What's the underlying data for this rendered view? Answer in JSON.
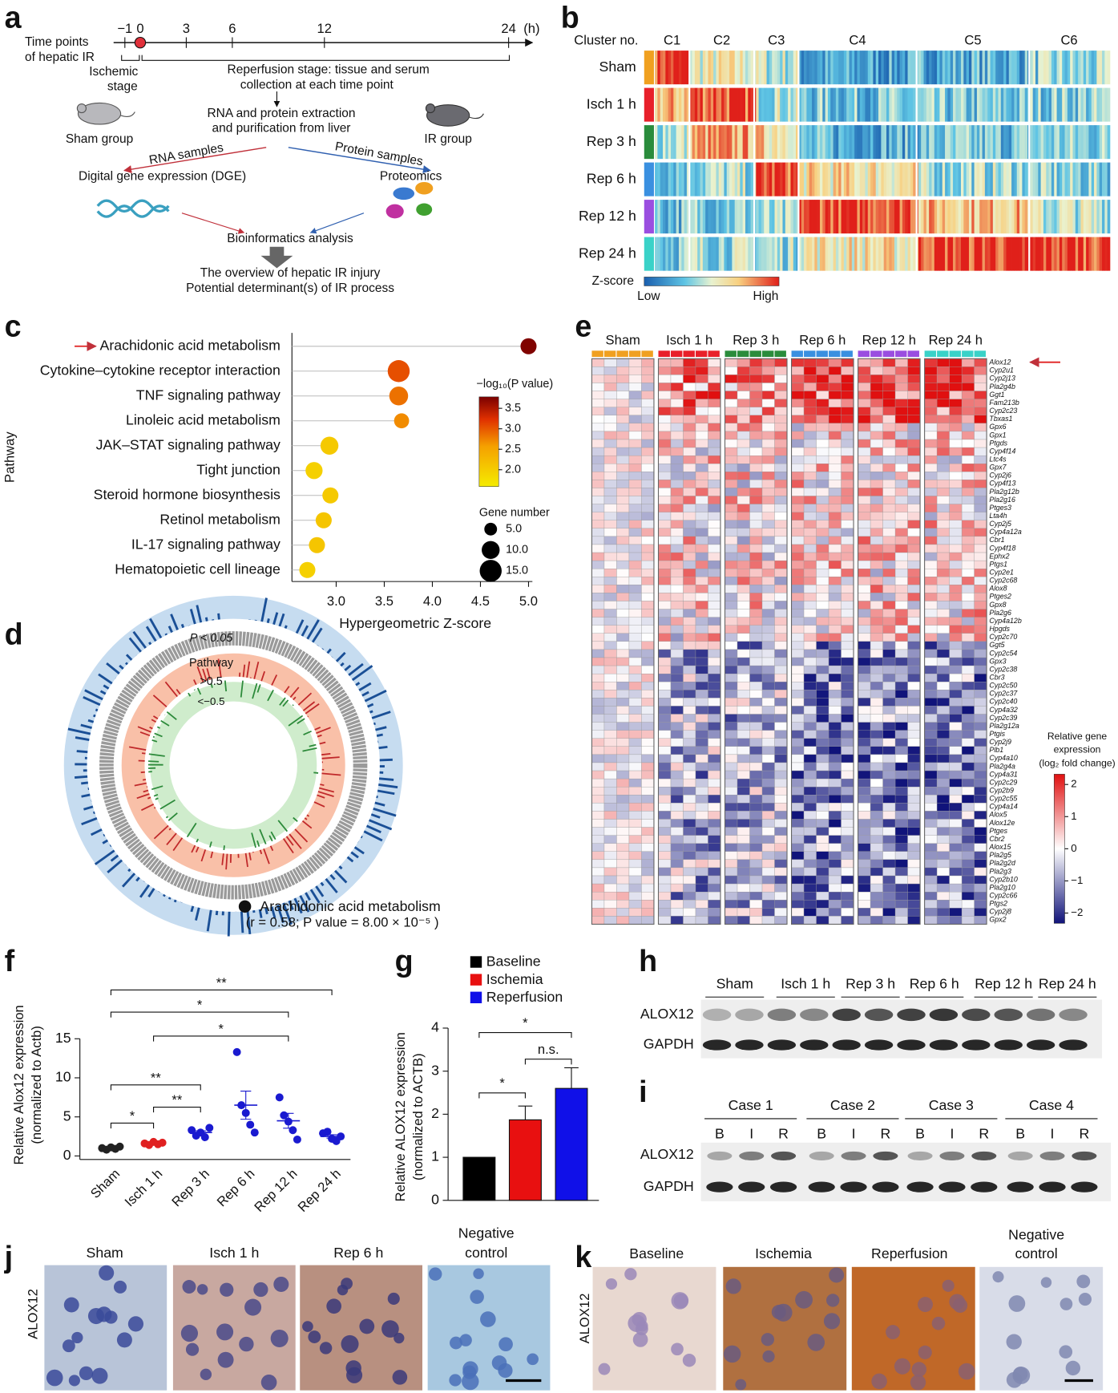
{
  "panel_letters": [
    "a",
    "b",
    "c",
    "d",
    "e",
    "f",
    "g",
    "h",
    "i",
    "j",
    "k"
  ],
  "panel_a": {
    "timeline_label": [
      "Time points",
      "of hepatic IR"
    ],
    "time_axis": {
      "ticks": [
        {
          "value": -1,
          "label": "−1"
        },
        0,
        3,
        6,
        12,
        24
      ],
      "unit": "(h)"
    },
    "ischemic_stage": [
      "Ischemic",
      "stage"
    ],
    "reperfusion_stage": [
      "Reperfusion stage: tissue and serum",
      "collection at each time point"
    ],
    "extraction": [
      "RNA and protein extraction",
      "and purification from liver"
    ],
    "sham_group": "Sham group",
    "ir_group": "IR group",
    "rna_samples": "RNA samples",
    "protein_samples": "Protein samples",
    "dge": "Digital gene expression (DGE)",
    "proteomics": "Proteomics",
    "bioinformatics": "Bioinformatics analysis",
    "outcome": [
      "The overview of hepatic IR injury",
      "Potential determinant(s) of IR process"
    ]
  },
  "panel_b": {
    "cluster_title": "Cluster no.",
    "clusters": [
      "C1",
      "C2",
      "C3",
      "C4",
      "C5",
      "C6"
    ],
    "groups": [
      {
        "name": "Sham",
        "color": "#f0a020"
      },
      {
        "name": "Isch 1 h",
        "color": "#e8202a"
      },
      {
        "name": "Rep 3 h",
        "color": "#2a8c3c"
      },
      {
        "name": "Rep 6 h",
        "color": "#3a90e0"
      },
      {
        "name": "Rep 12 h",
        "color": "#9a4ee0"
      },
      {
        "name": "Rep 24 h",
        "color": "#3ad2c8"
      }
    ],
    "zscore": {
      "title": "Z-score",
      "low": "Low",
      "high": "High"
    }
  },
  "panel_d": {
    "p_label": "P < 0.05",
    "pathway": "Pathway",
    "pos": ">0.5",
    "neg": "<−0.5",
    "marker": "a",
    "pathway_name": "Arachidonic acid metabolism",
    "stats": "(r = 0.58; P value = 8.00 × 10⁻⁵ )"
  },
  "panel_e": {
    "genes": [
      "Alox12",
      "Cyp2u1",
      "Cyp2j13",
      "Pla2g4b",
      "Ggt1",
      "Fam213b",
      "Cyp2c23",
      "Tbxas1",
      "Gpx6",
      "Gpx1",
      "Ptgds",
      "Cyp4f14",
      "Ltc4s",
      "Gpx7",
      "Cyp2j6",
      "Cyp4f13",
      "Pla2g12b",
      "Pla2g16",
      "Ptges3",
      "Lta4h",
      "Cyp2j5",
      "Cyp4a12a",
      "Cbr1",
      "Cyp4f18",
      "Ephx2",
      "Ptgs1",
      "Cyp2e1",
      "Cyp2c68",
      "Alox8",
      "Ptges2",
      "Gpx8",
      "Pla2g6",
      "Cyp4a12b",
      "Hpgds",
      "Cyp2c70",
      "Ggt5",
      "Cyp2c54",
      "Gpx3",
      "Cyp2c38",
      "Cbr3",
      "Cyp2c50",
      "Cyp2c37",
      "Cyp2c40",
      "Cyp4a32",
      "Cyp2c39",
      "Pla2g12a",
      "Ptgis",
      "Cyp2j9",
      "Plb1",
      "Cyp4a10",
      "Pla2g4a",
      "Cyp4a31",
      "Cyp2c29",
      "Cyp2b9",
      "Cyp2c55",
      "Cyp4a14",
      "Alox5",
      "Alox12e",
      "Ptges",
      "Cbr2",
      "Alox15",
      "Pla2g5",
      "Pla2g2d",
      "Pla2g3",
      "Cyp2b10",
      "Pla2g10",
      "Cyp2c66",
      "Ptgs2",
      "Cyp2j8",
      "Gpx2"
    ],
    "colorbar": {
      "title": [
        "Relative gene",
        "expression",
        "(log₂ fold change)"
      ],
      "lim": [
        -2.32,
        2.32
      ],
      "ticks": [
        2,
        1,
        0,
        {
          "value": -1,
          "label": "−1"
        },
        {
          "value": -2,
          "label": "−2"
        }
      ]
    }
  },
  "panel_h": {
    "proteins": [
      "ALOX12",
      "GAPDH"
    ]
  },
  "panel_i": {
    "cases": [
      "Case 1",
      "Case 2",
      "Case 3",
      "Case 4"
    ],
    "lanes": [
      "B",
      "I",
      "R"
    ]
  },
  "panel_j": {
    "stain": "ALOX12",
    "negative": [
      "Negative",
      "control"
    ]
  },
  "chart_data": [
    {
      "type": "bubble",
      "ylabel": "Pathway",
      "xlabel": "Hypergeometric Z-score",
      "categories": [
        "Arachidonic acid metabolism",
        "Cytokine–cytokine receptor interaction",
        "TNF signaling pathway",
        "Linoleic acid metabolism",
        "JAK–STAT signaling pathway",
        "Tight junction",
        "Steroid hormone biosynthesis",
        "Retinol metabolism",
        "IL-17 signaling pathway",
        "Hematopoietic cell lineage"
      ],
      "values": [
        5.0,
        3.65,
        3.65,
        3.68,
        2.93,
        2.77,
        2.94,
        2.87,
        2.8,
        2.7
      ],
      "color_values": [
        3.75,
        3.05,
        2.85,
        2.7,
        2.05,
        1.95,
        2.05,
        2.1,
        2.1,
        1.95
      ],
      "gene_numbers": [
        8,
        15,
        11,
        7,
        10,
        9,
        8,
        8,
        8,
        8
      ],
      "xlim": [
        2.54,
        5.04
      ],
      "xticks": [
        {
          "value": 3,
          "label": "3.0"
        },
        {
          "value": 3.5,
          "label": "3.5"
        },
        {
          "value": 4,
          "label": "4.0"
        },
        {
          "value": 4.5,
          "label": "4.5"
        },
        {
          "value": 5,
          "label": "5.0"
        }
      ],
      "colorbar": {
        "title": "−log₁₀(P value)",
        "lim": [
          1.59,
          3.78
        ],
        "ticks": [
          {
            "value": 3.5,
            "label": "3.5"
          },
          {
            "value": 3,
            "label": "3.0"
          },
          {
            "value": 2.5,
            "label": "2.5"
          },
          {
            "value": 2,
            "label": "2.0"
          }
        ]
      },
      "size_legend": {
        "title": "Gene number",
        "ticks": [
          {
            "value": 5,
            "label": "5.0"
          },
          {
            "value": 10,
            "label": "10.0"
          },
          {
            "value": 15,
            "label": "15.0"
          }
        ]
      }
    },
    {
      "type": "dot",
      "ylabel": [
        "Relative Alox12 expression",
        "(normalized to Actb)"
      ],
      "categories": [
        "Sham",
        "Isch 1 h",
        "Rep 3 h",
        "Rep 6 h",
        "Rep 12 h",
        "Rep 24 h"
      ],
      "colors": [
        "#222222",
        "#e02020",
        "#1a1ad0",
        "#1a1ad0",
        "#1a1ad0",
        "#1a1ad0"
      ],
      "points": [
        [
          1.0,
          0.8,
          1.1,
          0.9,
          1.2
        ],
        [
          1.6,
          1.4,
          1.8,
          1.5,
          1.7
        ],
        [
          3.3,
          2.6,
          3.0,
          2.4,
          3.6
        ],
        [
          13.3,
          6.5,
          5.5,
          4.0,
          3.0
        ],
        [
          7.5,
          5.2,
          4.4,
          3.3,
          2.1
        ],
        [
          2.9,
          3.1,
          2.2,
          1.9,
          2.5
        ]
      ],
      "means": [
        1.0,
        1.6,
        3.0,
        6.5,
        4.5,
        2.5
      ],
      "sems": [
        0.07,
        0.07,
        0.22,
        1.8,
        0.95,
        0.22
      ],
      "ylim": [
        0,
        15
      ],
      "yticks": [
        0,
        5,
        10,
        15
      ],
      "annotations": [
        "**",
        "*",
        "*",
        "**",
        "**",
        "*"
      ]
    },
    {
      "type": "bar",
      "ylabel": [
        "Relative ALOX12 expression",
        "(normalized to ACTB)"
      ],
      "categories": [
        "Baseline",
        "Ischemia",
        "Reperfusion"
      ],
      "values": [
        1,
        1.87,
        2.6
      ],
      "errors": [
        null,
        0.32,
        0.48
      ],
      "colors": [
        "#000000",
        "#e81010",
        "#1010e8"
      ],
      "ylim": [
        0,
        4
      ],
      "yticks": [
        0,
        1,
        2,
        3,
        4
      ],
      "annotations": [
        "*",
        "*",
        "n.s."
      ]
    }
  ]
}
